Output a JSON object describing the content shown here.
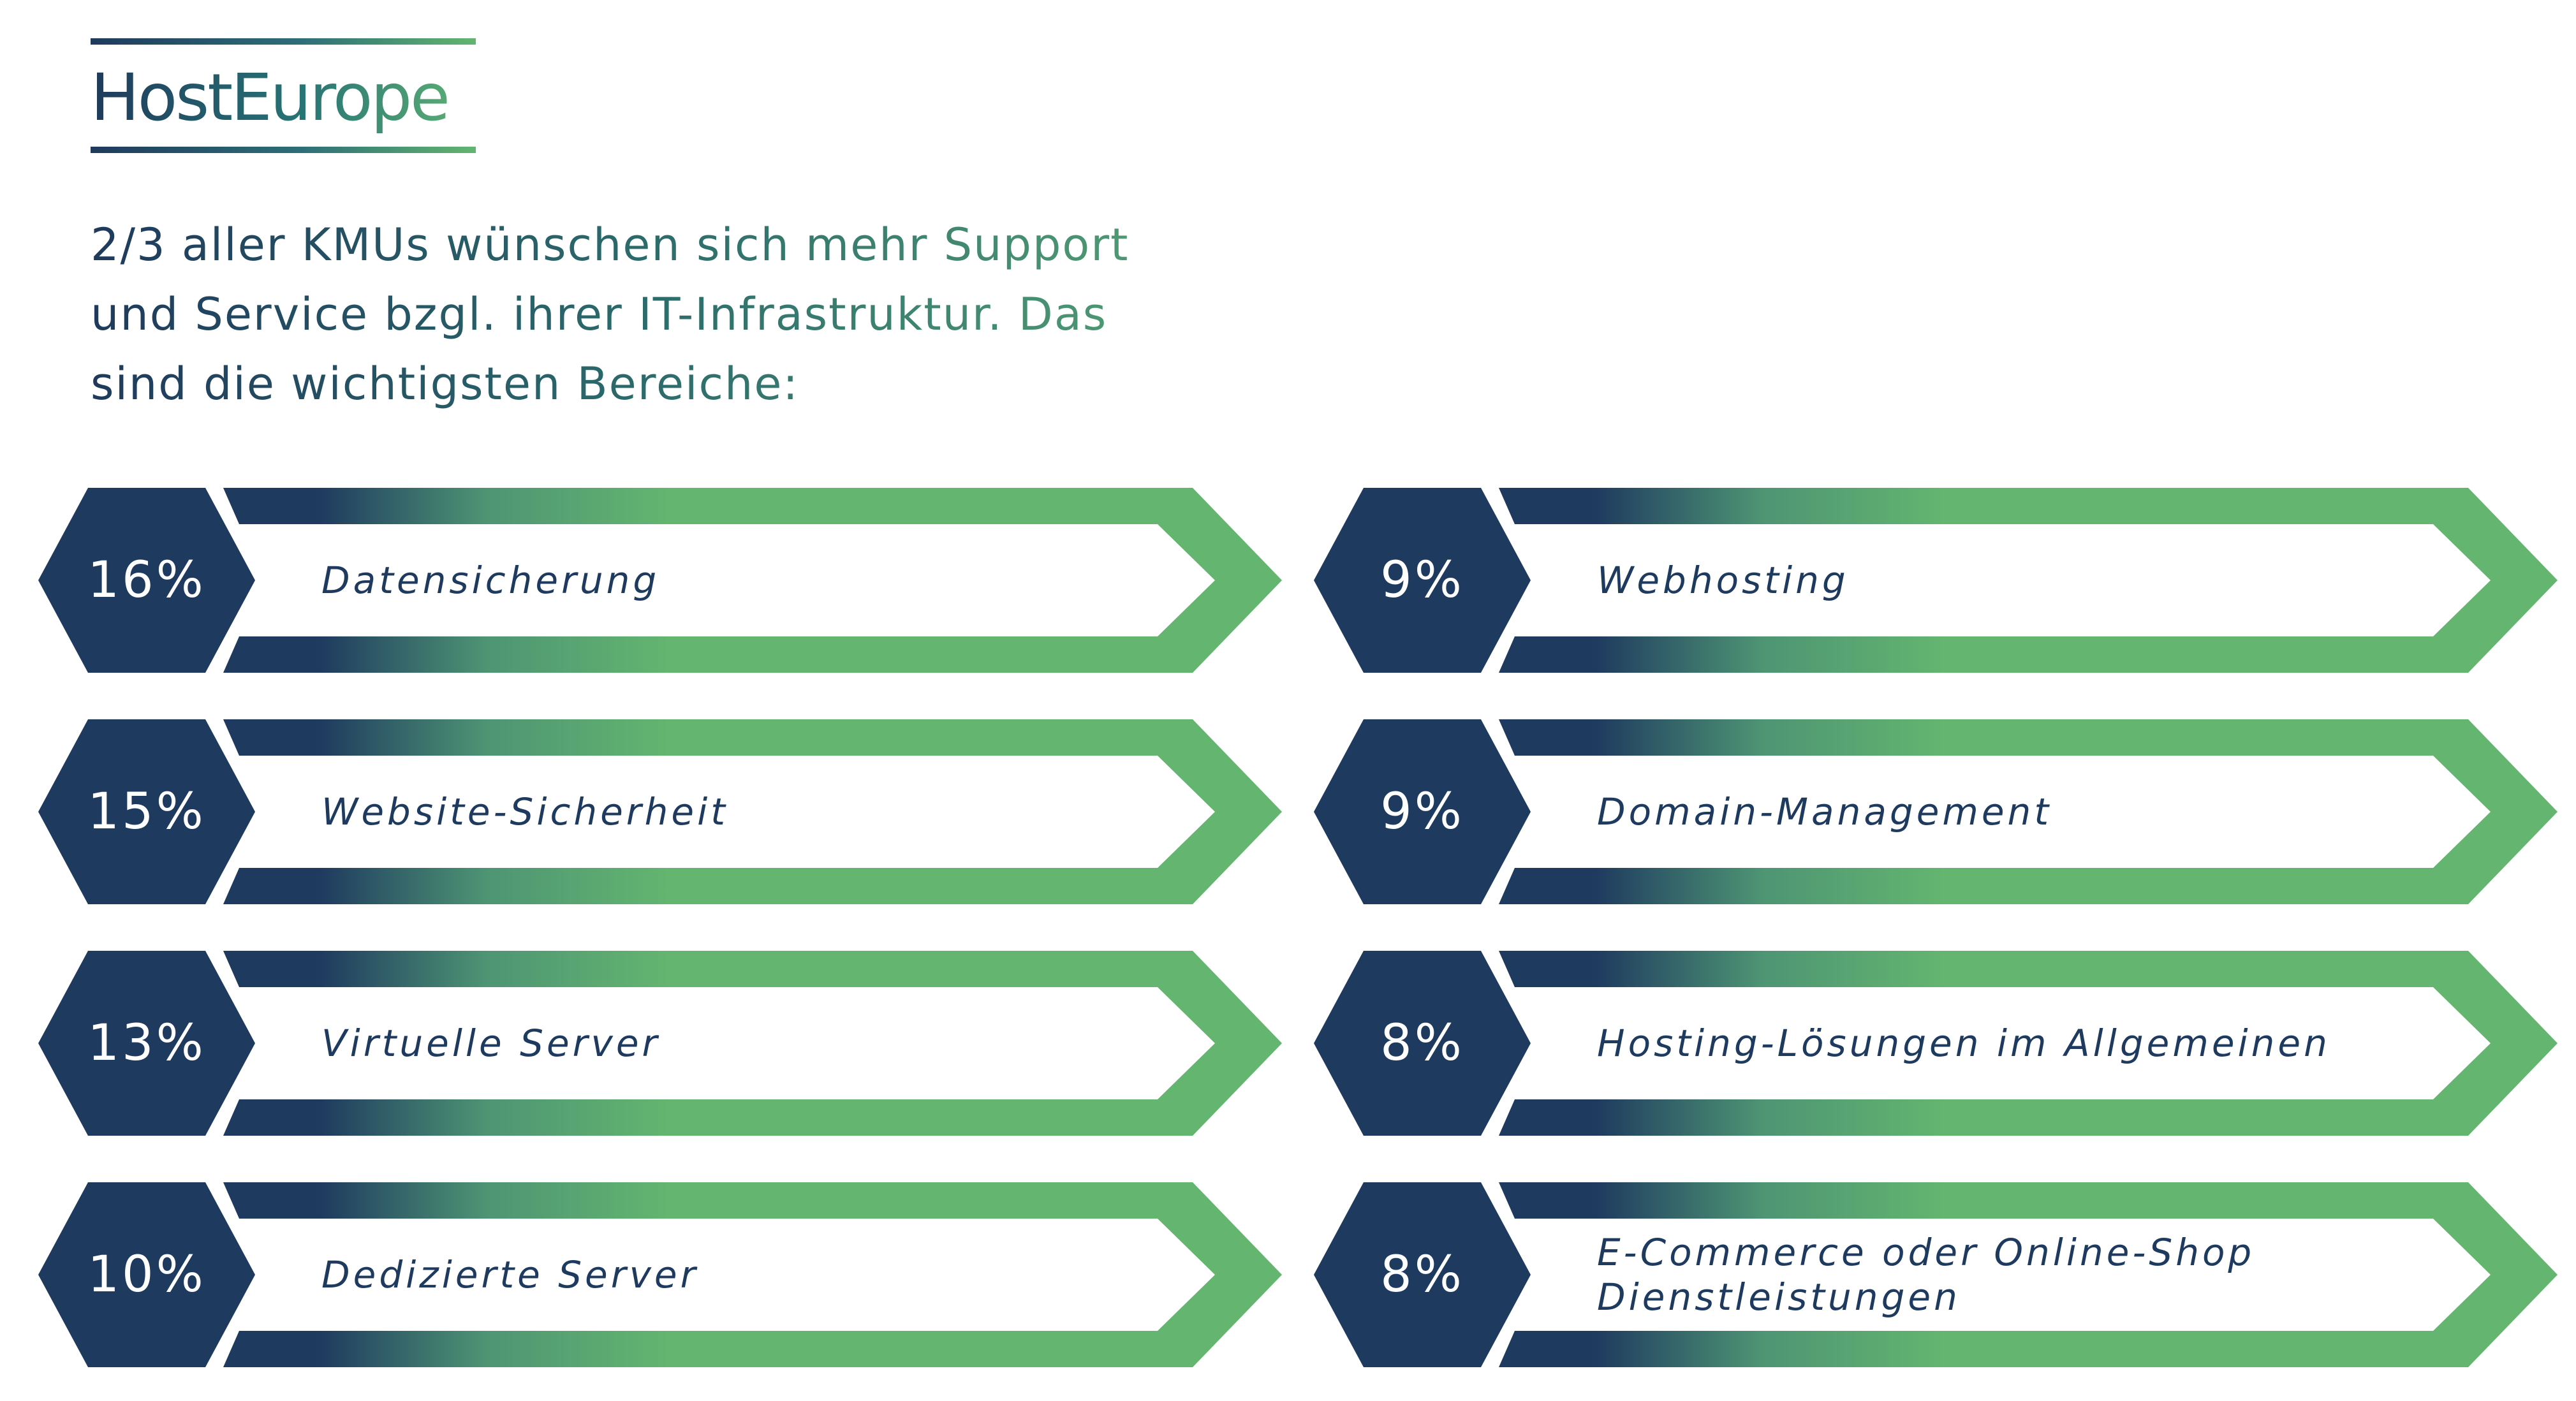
{
  "logo": {
    "text": "HostEurope"
  },
  "headline": {
    "lines": [
      "2/3 aller KMUs wünschen sich mehr Support",
      "und Service bzgl. ihrer IT-Infrastruktur. Das",
      "sind die wichtigsten Bereiche:"
    ]
  },
  "colors": {
    "navy": "#1e3a5f",
    "green": "#63b56f",
    "teal": "#3c8a72"
  },
  "items": [
    {
      "percent": "16%",
      "value": 16,
      "label": "Datensicherung"
    },
    {
      "percent": "15%",
      "value": 15,
      "label": "Website-Sicherheit"
    },
    {
      "percent": "13%",
      "value": 13,
      "label": "Virtuelle Server"
    },
    {
      "percent": "10%",
      "value": 10,
      "label": "Dedizierte Server"
    },
    {
      "percent": "9%",
      "value": 9,
      "label": "Webhosting"
    },
    {
      "percent": "9%",
      "value": 9,
      "label": "Domain-Management"
    },
    {
      "percent": "8%",
      "value": 8,
      "label": "Hosting-Lösungen im Allgemeinen"
    },
    {
      "percent": "8%",
      "value": 8,
      "label": "E-Commerce oder Online-Shop Dienstleistungen"
    }
  ]
}
